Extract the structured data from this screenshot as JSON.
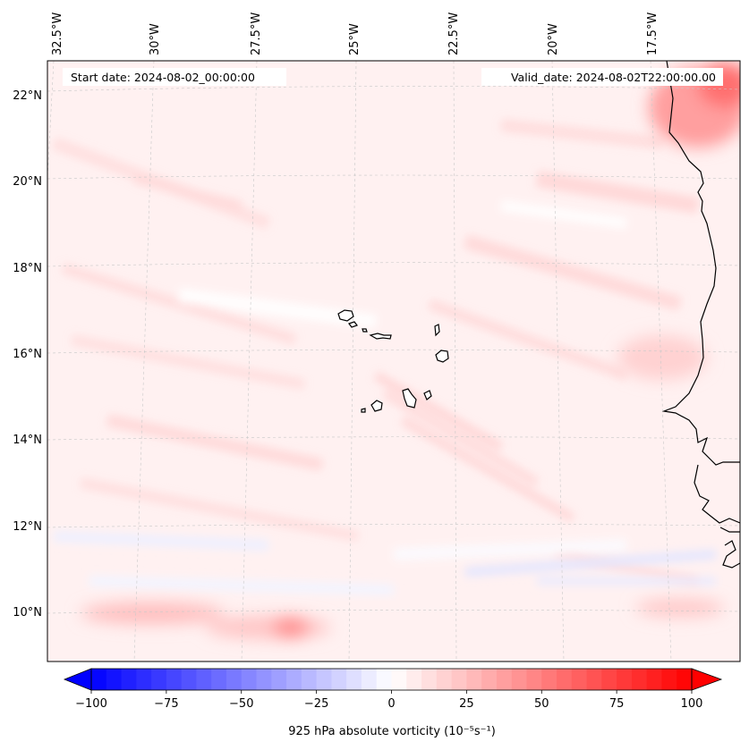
{
  "map": {
    "start_date": "Start date: 2024-08-02_00:00:00",
    "valid_date": "Valid_date: 2024-08-02T22:00:00.00",
    "lon_labels": [
      "32.5°W",
      "30°W",
      "27.5°W",
      "25°W",
      "22.5°W",
      "20°W",
      "17.5°W"
    ],
    "lat_labels": [
      "22°N",
      "20°N",
      "18°N",
      "16°N",
      "14°N",
      "12°N",
      "10°N"
    ],
    "region": "Cape Verde Islands and West African coast",
    "field": "925 hPa absolute vorticity"
  },
  "colorbar": {
    "tick_labels": [
      "−100",
      "−75",
      "−50",
      "−25",
      "0",
      "25",
      "50",
      "75",
      "100"
    ],
    "label": "925 hPa absolute vorticity (10⁻⁵s⁻¹)",
    "min": -100,
    "max": 100,
    "levels": 41,
    "negative_color": "#0000ff",
    "positive_color": "#ff0000"
  }
}
